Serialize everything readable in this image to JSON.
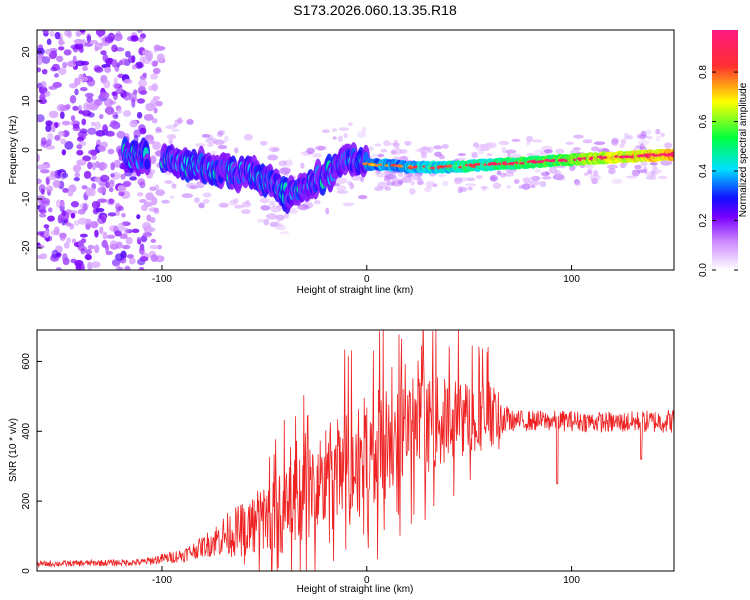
{
  "title": "S173.2026.060.13.35.R18",
  "chart_data": [
    {
      "type": "heatmap",
      "xlabel": "Height of straight line (km)",
      "ylabel": "Frequency (Hz)",
      "xlim": [
        -161,
        150
      ],
      "ylim": [
        -24.5,
        24.5
      ],
      "x_ticks": [
        -100,
        0,
        100
      ],
      "y_ticks": [
        -20,
        -10,
        0,
        10,
        20
      ],
      "colorbar": {
        "label": "Normalized spectral amplitude",
        "range": [
          0.0,
          0.97
        ],
        "ticks": [
          0.0,
          0.2,
          0.4,
          0.6,
          0.8
        ],
        "colors": [
          "#ffffff",
          "#cc88ff",
          "#7a00ff",
          "#1010ff",
          "#00e0ff",
          "#00ff40",
          "#ffff00",
          "#ff3030",
          "#ff1880"
        ]
      },
      "ridge": {
        "x": [
          -117,
          -105,
          -95,
          -85,
          -75,
          -65,
          -55,
          -45,
          -38,
          -32,
          -25,
          -15,
          -8,
          0,
          10,
          20,
          40,
          60,
          80,
          100,
          120,
          149
        ],
        "freq_hz": [
          -1.5,
          -1.5,
          -2,
          -3,
          -4,
          -5,
          -5,
          -7,
          -9,
          -8,
          -6,
          -4,
          -2,
          -3,
          -3,
          -3.5,
          -3.5,
          -3,
          -2.5,
          -2,
          -1.5,
          -1
        ]
      }
    },
    {
      "type": "line",
      "xlabel": "Height of straight line (km)",
      "ylabel": "SNR (10 * v/v)",
      "xlim": [
        -161,
        150
      ],
      "ylim": [
        0,
        690
      ],
      "x_ticks": [
        -100,
        0,
        100
      ],
      "y_ticks": [
        0,
        200,
        400,
        600
      ],
      "series": [
        {
          "color": "#ee2222",
          "envelope": {
            "x": [
              -161,
              -110,
              -100,
              -90,
              -80,
              -70,
              -60,
              -50,
              -40,
              -30,
              -20,
              -10,
              0,
              10,
              20,
              30,
              40,
              50,
              60,
              70,
              80,
              100,
              120,
              150
            ],
            "mean": [
              20,
              25,
              35,
              45,
              70,
              100,
              120,
              150,
              170,
              210,
              260,
              290,
              330,
              360,
              400,
              420,
              430,
              440,
              450,
              430,
              430,
              430,
              425,
              430
            ],
            "spread": [
              8,
              10,
              15,
              20,
              30,
              60,
              80,
              100,
              120,
              140,
              160,
              170,
              180,
              170,
              160,
              140,
              120,
              110,
              100,
              30,
              30,
              30,
              30,
              35
            ]
          }
        }
      ]
    }
  ]
}
